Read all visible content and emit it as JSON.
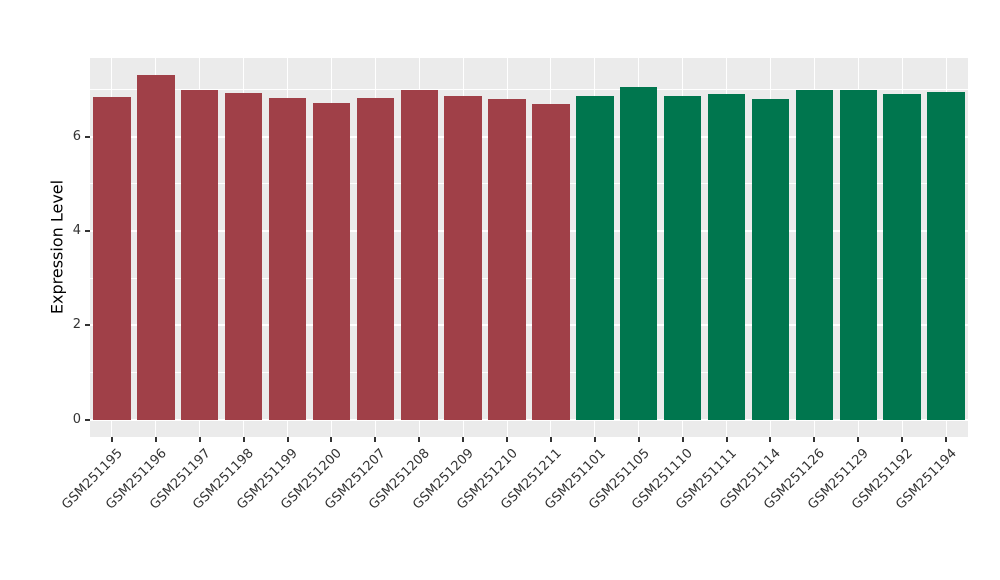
{
  "figure": {
    "ylabel": "Expression Level"
  },
  "chart_data": {
    "type": "bar",
    "title": "",
    "xlabel": "",
    "ylabel": "Expression Level",
    "categories": [
      "GSM251195",
      "GSM251196",
      "GSM251197",
      "GSM251198",
      "GSM251199",
      "GSM251200",
      "GSM251207",
      "GSM251208",
      "GSM251209",
      "GSM251210",
      "GSM251211",
      "GSM251101",
      "GSM251105",
      "GSM251110",
      "GSM251111",
      "GSM251114",
      "GSM251126",
      "GSM251129",
      "GSM251192",
      "GSM251194"
    ],
    "values": [
      6.85,
      7.3,
      7.0,
      6.92,
      6.82,
      6.72,
      6.82,
      7.0,
      6.87,
      6.8,
      6.7,
      6.87,
      7.05,
      6.87,
      6.9,
      6.8,
      7.0,
      7.0,
      6.9,
      6.95
    ],
    "bar_colors": [
      "#A04048",
      "#A04048",
      "#A04048",
      "#A04048",
      "#A04048",
      "#A04048",
      "#A04048",
      "#A04048",
      "#A04048",
      "#A04048",
      "#A04048",
      "#00764E",
      "#00764E",
      "#00764E",
      "#00764E",
      "#00764E",
      "#00764E",
      "#00764E",
      "#00764E",
      "#00764E"
    ],
    "group_colors": {
      "maroon_group": "#A04048",
      "green_group": "#00764E"
    },
    "yticks": [
      0,
      2,
      4,
      6
    ],
    "yticks_minor": [
      1,
      3,
      5,
      7
    ],
    "ytick_labels": [
      "0",
      "2",
      "4",
      "6"
    ],
    "ylim": [
      -0.37,
      7.67
    ],
    "grid": "on",
    "legend": "none",
    "panel_bg": "#EBEBEB",
    "grid_color": "#FFFFFF",
    "tick_color": "#333333"
  }
}
